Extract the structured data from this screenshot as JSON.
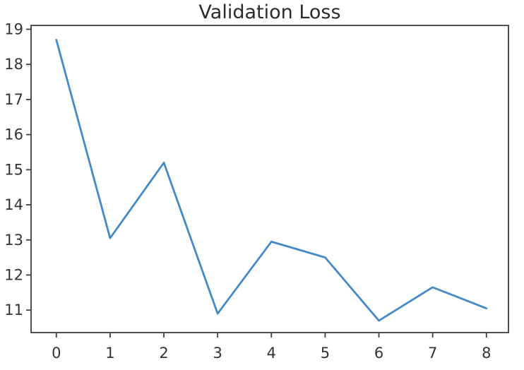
{
  "chart_data": {
    "type": "line",
    "title": "Validation Loss",
    "x": [
      0,
      1,
      2,
      3,
      4,
      5,
      6,
      7,
      8
    ],
    "values": [
      18.7,
      13.05,
      15.2,
      10.9,
      12.95,
      12.5,
      10.7,
      11.65,
      11.05
    ],
    "series_name": "validation-loss",
    "x_ticks": [
      "0",
      "1",
      "2",
      "3",
      "4",
      "5",
      "6",
      "7",
      "8"
    ],
    "y_ticks": [
      "11",
      "12",
      "13",
      "14",
      "15",
      "16",
      "17",
      "18",
      "19"
    ],
    "x_tick_values": [
      0,
      1,
      2,
      3,
      4,
      5,
      6,
      7,
      8
    ],
    "y_tick_values": [
      11,
      12,
      13,
      14,
      15,
      16,
      17,
      18,
      19
    ],
    "xlim": [
      -0.47,
      8.41
    ],
    "ylim": [
      10.36,
      19.11
    ],
    "grid": false,
    "legend": null,
    "xlabel": "",
    "ylabel": "",
    "colors": {
      "line": "#4489c8",
      "spine": "#3d3d3d",
      "tick_text": "#333333",
      "title_text": "#2b2b2b",
      "background": "#ffffff"
    }
  }
}
